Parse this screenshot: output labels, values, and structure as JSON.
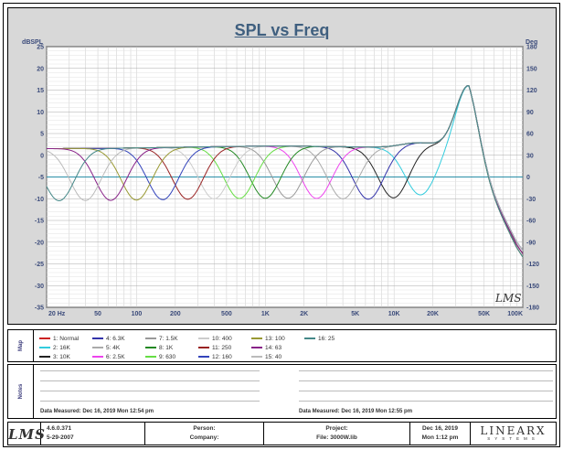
{
  "chart_data": {
    "type": "line",
    "title": "SPL vs Freq",
    "ylabel": "dBSPL",
    "y2label": "Deg",
    "xscale": "log",
    "xlim": [
      20,
      100000
    ],
    "ylim": [
      -35,
      25
    ],
    "y2lim": [
      -180,
      180
    ],
    "grid": true,
    "x_ticks": [
      20,
      50,
      100,
      200,
      500,
      1000,
      2000,
      5000,
      10000,
      20000,
      50000,
      100000
    ],
    "x_tick_labels": [
      "20 Hz",
      "50",
      "100",
      "200",
      "500",
      "1K",
      "2K",
      "5K",
      "10K",
      "20K",
      "50K",
      "100K"
    ],
    "y_ticks": [
      25,
      20,
      15,
      10,
      5,
      0,
      -5,
      -10,
      -15,
      -20,
      -25,
      -30,
      -35
    ],
    "y2_ticks": [
      180,
      150,
      120,
      90,
      60,
      30,
      0,
      -30,
      -60,
      -90,
      -120,
      -150,
      -180
    ],
    "series": [
      {
        "name": "1: Normal",
        "color": "#cc2222",
        "notch": null
      },
      {
        "name": "2: 16K",
        "color": "#33ccdd",
        "notch": 16000
      },
      {
        "name": "3: 10K",
        "color": "#222222",
        "notch": 10000
      },
      {
        "name": "4: 6.3K",
        "color": "#3333aa",
        "notch": 6300
      },
      {
        "name": "5: 4K",
        "color": "#aaaaaa",
        "notch": 4000
      },
      {
        "name": "6: 2.5K",
        "color": "#ee44ee",
        "notch": 2500
      },
      {
        "name": "7: 1.5K",
        "color": "#999999",
        "notch": 1500
      },
      {
        "name": "8: 1K",
        "color": "#228822",
        "notch": 1000
      },
      {
        "name": "9: 630",
        "color": "#66dd44",
        "notch": 630
      },
      {
        "name": "10: 400",
        "color": "#cccccc",
        "notch": 400
      },
      {
        "name": "11: 250",
        "color": "#992222",
        "notch": 250
      },
      {
        "name": "12: 160",
        "color": "#3344bb",
        "notch": 160
      },
      {
        "name": "13: 100",
        "color": "#999933",
        "notch": 100
      },
      {
        "name": "14: 63",
        "color": "#882288",
        "notch": 63
      },
      {
        "name": "15: 40",
        "color": "#bbbbbb",
        "notch": 40
      },
      {
        "name": "16: 25",
        "color": "#448888",
        "notch": 25
      }
    ],
    "curve_shape": {
      "baseline_db": 1.5,
      "notch_depth_db": -12,
      "resonance_freq": 38000,
      "resonance_peak_db": 16,
      "highfreq_end_db": -26
    }
  },
  "map_label": "Map",
  "notes_label": "Notes",
  "notes": {
    "measured_left": "Data Measured: Dec 16, 2019  Mon 12:54 pm",
    "measured_right": "Data Measured: Dec 16, 2019  Mon 12:55 pm"
  },
  "watermark": "LMS",
  "footer": {
    "logo": "LMS",
    "version": "4.6.0.371",
    "version_date": "5-29-2007",
    "person_label": "Person:",
    "company_label": "Company:",
    "project_label": "Project:",
    "file_label": "File: 3000W.lib",
    "date": "Dec 16, 2019",
    "time": "Mon  1:12 pm",
    "brand": "LINEARX",
    "brand_sub": "SYSTEMS"
  }
}
